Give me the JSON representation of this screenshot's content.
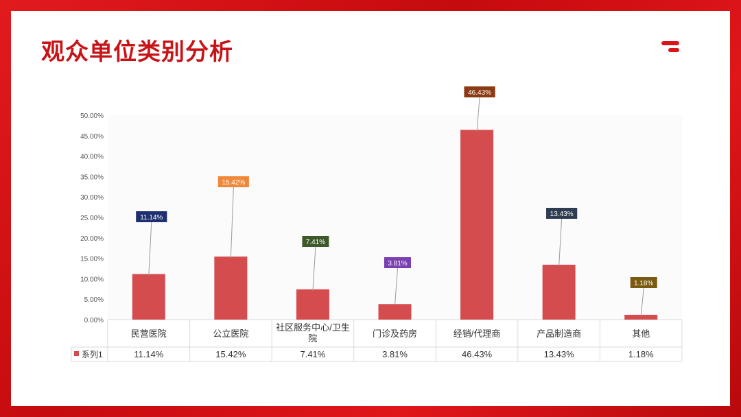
{
  "page": {
    "title": "观众单位类别分析"
  },
  "colors": {
    "bar": "#d54c4f",
    "title": "#c81418",
    "label_bgs": [
      "#1f3070",
      "#f0883a",
      "#3e5a2a",
      "#7a3fb0",
      "#8b3a12",
      "#2f3d52",
      "#7a5a10"
    ]
  },
  "chart_data": {
    "type": "bar",
    "categories": [
      "民营医院",
      "公立医院",
      "社区服务中心/卫生院",
      "门诊及药房",
      "经销/代理商",
      "产品制造商",
      "其他"
    ],
    "series": [
      {
        "name": "系列1",
        "values": [
          11.14,
          15.42,
          7.41,
          3.81,
          46.43,
          13.43,
          1.18
        ]
      }
    ],
    "data_labels": [
      "11.14%",
      "15.42%",
      "7.41%",
      "3.81%",
      "46.43%",
      "13.43%",
      "1.18%"
    ],
    "y_ticks": [
      "0.00%",
      "5.00%",
      "10.00%",
      "15.00%",
      "20.00%",
      "25.00%",
      "30.00%",
      "35.00%",
      "40.00%",
      "45.00%",
      "50.00%"
    ],
    "ylim": [
      0,
      50
    ],
    "grid": false,
    "data_table": true,
    "legend_key_label": "系列1"
  }
}
